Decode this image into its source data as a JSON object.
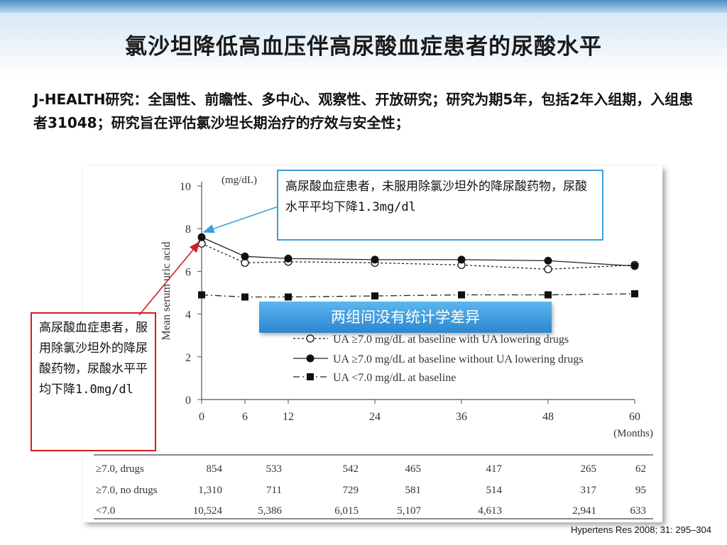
{
  "slide": {
    "title": "氯沙坦降低高血压伴高尿酸血症患者的尿酸水平",
    "intro": "J-HEALTH研究：全国性、前瞻性、多中心、观察性、开放研究；研究为期5年，包括2年入组期，入组患者31048；研究旨在评估氯沙坦长期治疗的疗效与安全性；",
    "callout_right": "高尿酸血症患者，未服用除氯沙坦外的降尿酸药物，尿酸水平平均下降1.3mg/dl",
    "callout_left": "高尿酸血症患者，服用除氯沙坦外的降尿酸药物，尿酸水平平均下降1.0mg/dl",
    "banner": "两组间没有统计学差异",
    "citation": "Hypertens Res 2008; 31: 295–304"
  },
  "colors": {
    "right_callout_border": "#3aa0d8",
    "left_callout_border": "#cc2020",
    "banner": "#3c9be0"
  },
  "chart_data": {
    "type": "line",
    "x": [
      0,
      6,
      12,
      24,
      36,
      48,
      60
    ],
    "x_tick_labels": [
      "0",
      "6",
      "12",
      "24",
      "36",
      "48",
      "60"
    ],
    "xlabel": "(Months)",
    "ylabel": "Mean serum uric acid",
    "yunit": "(mg/dL)",
    "ylim": [
      0,
      10
    ],
    "y_ticks": [
      0,
      2,
      4,
      6,
      8,
      10
    ],
    "grid": false,
    "legend_position": "inside, lower-right",
    "series": [
      {
        "name": "UA ≥7.0 mg/dL at baseline with UA lowering drugs",
        "marker": "open-circle",
        "line": "dotted",
        "values": [
          7.3,
          6.4,
          6.45,
          6.4,
          6.3,
          6.1,
          6.3
        ]
      },
      {
        "name": "UA ≥7.0 mg/dL at baseline without UA lowering drugs",
        "marker": "filled-circle",
        "line": "solid",
        "values": [
          7.6,
          6.7,
          6.6,
          6.55,
          6.55,
          6.5,
          6.25
        ]
      },
      {
        "name": "UA <7.0 mg/dL at baseline",
        "marker": "filled-square",
        "line": "dash-dot",
        "values": [
          4.9,
          4.8,
          4.8,
          4.85,
          4.9,
          4.9,
          4.95
        ]
      }
    ],
    "table": {
      "rows": [
        {
          "label": "≥7.0, drugs",
          "values": [
            "854",
            "533",
            "542",
            "465",
            "417",
            "265",
            "62"
          ]
        },
        {
          "label": "≥7.0, no drugs",
          "values": [
            "1,310",
            "711",
            "729",
            "581",
            "514",
            "317",
            "95"
          ]
        },
        {
          "label": "<7.0",
          "values": [
            "10,524",
            "5,386",
            "6,015",
            "5,107",
            "4,613",
            "2,941",
            "633"
          ]
        }
      ]
    }
  }
}
